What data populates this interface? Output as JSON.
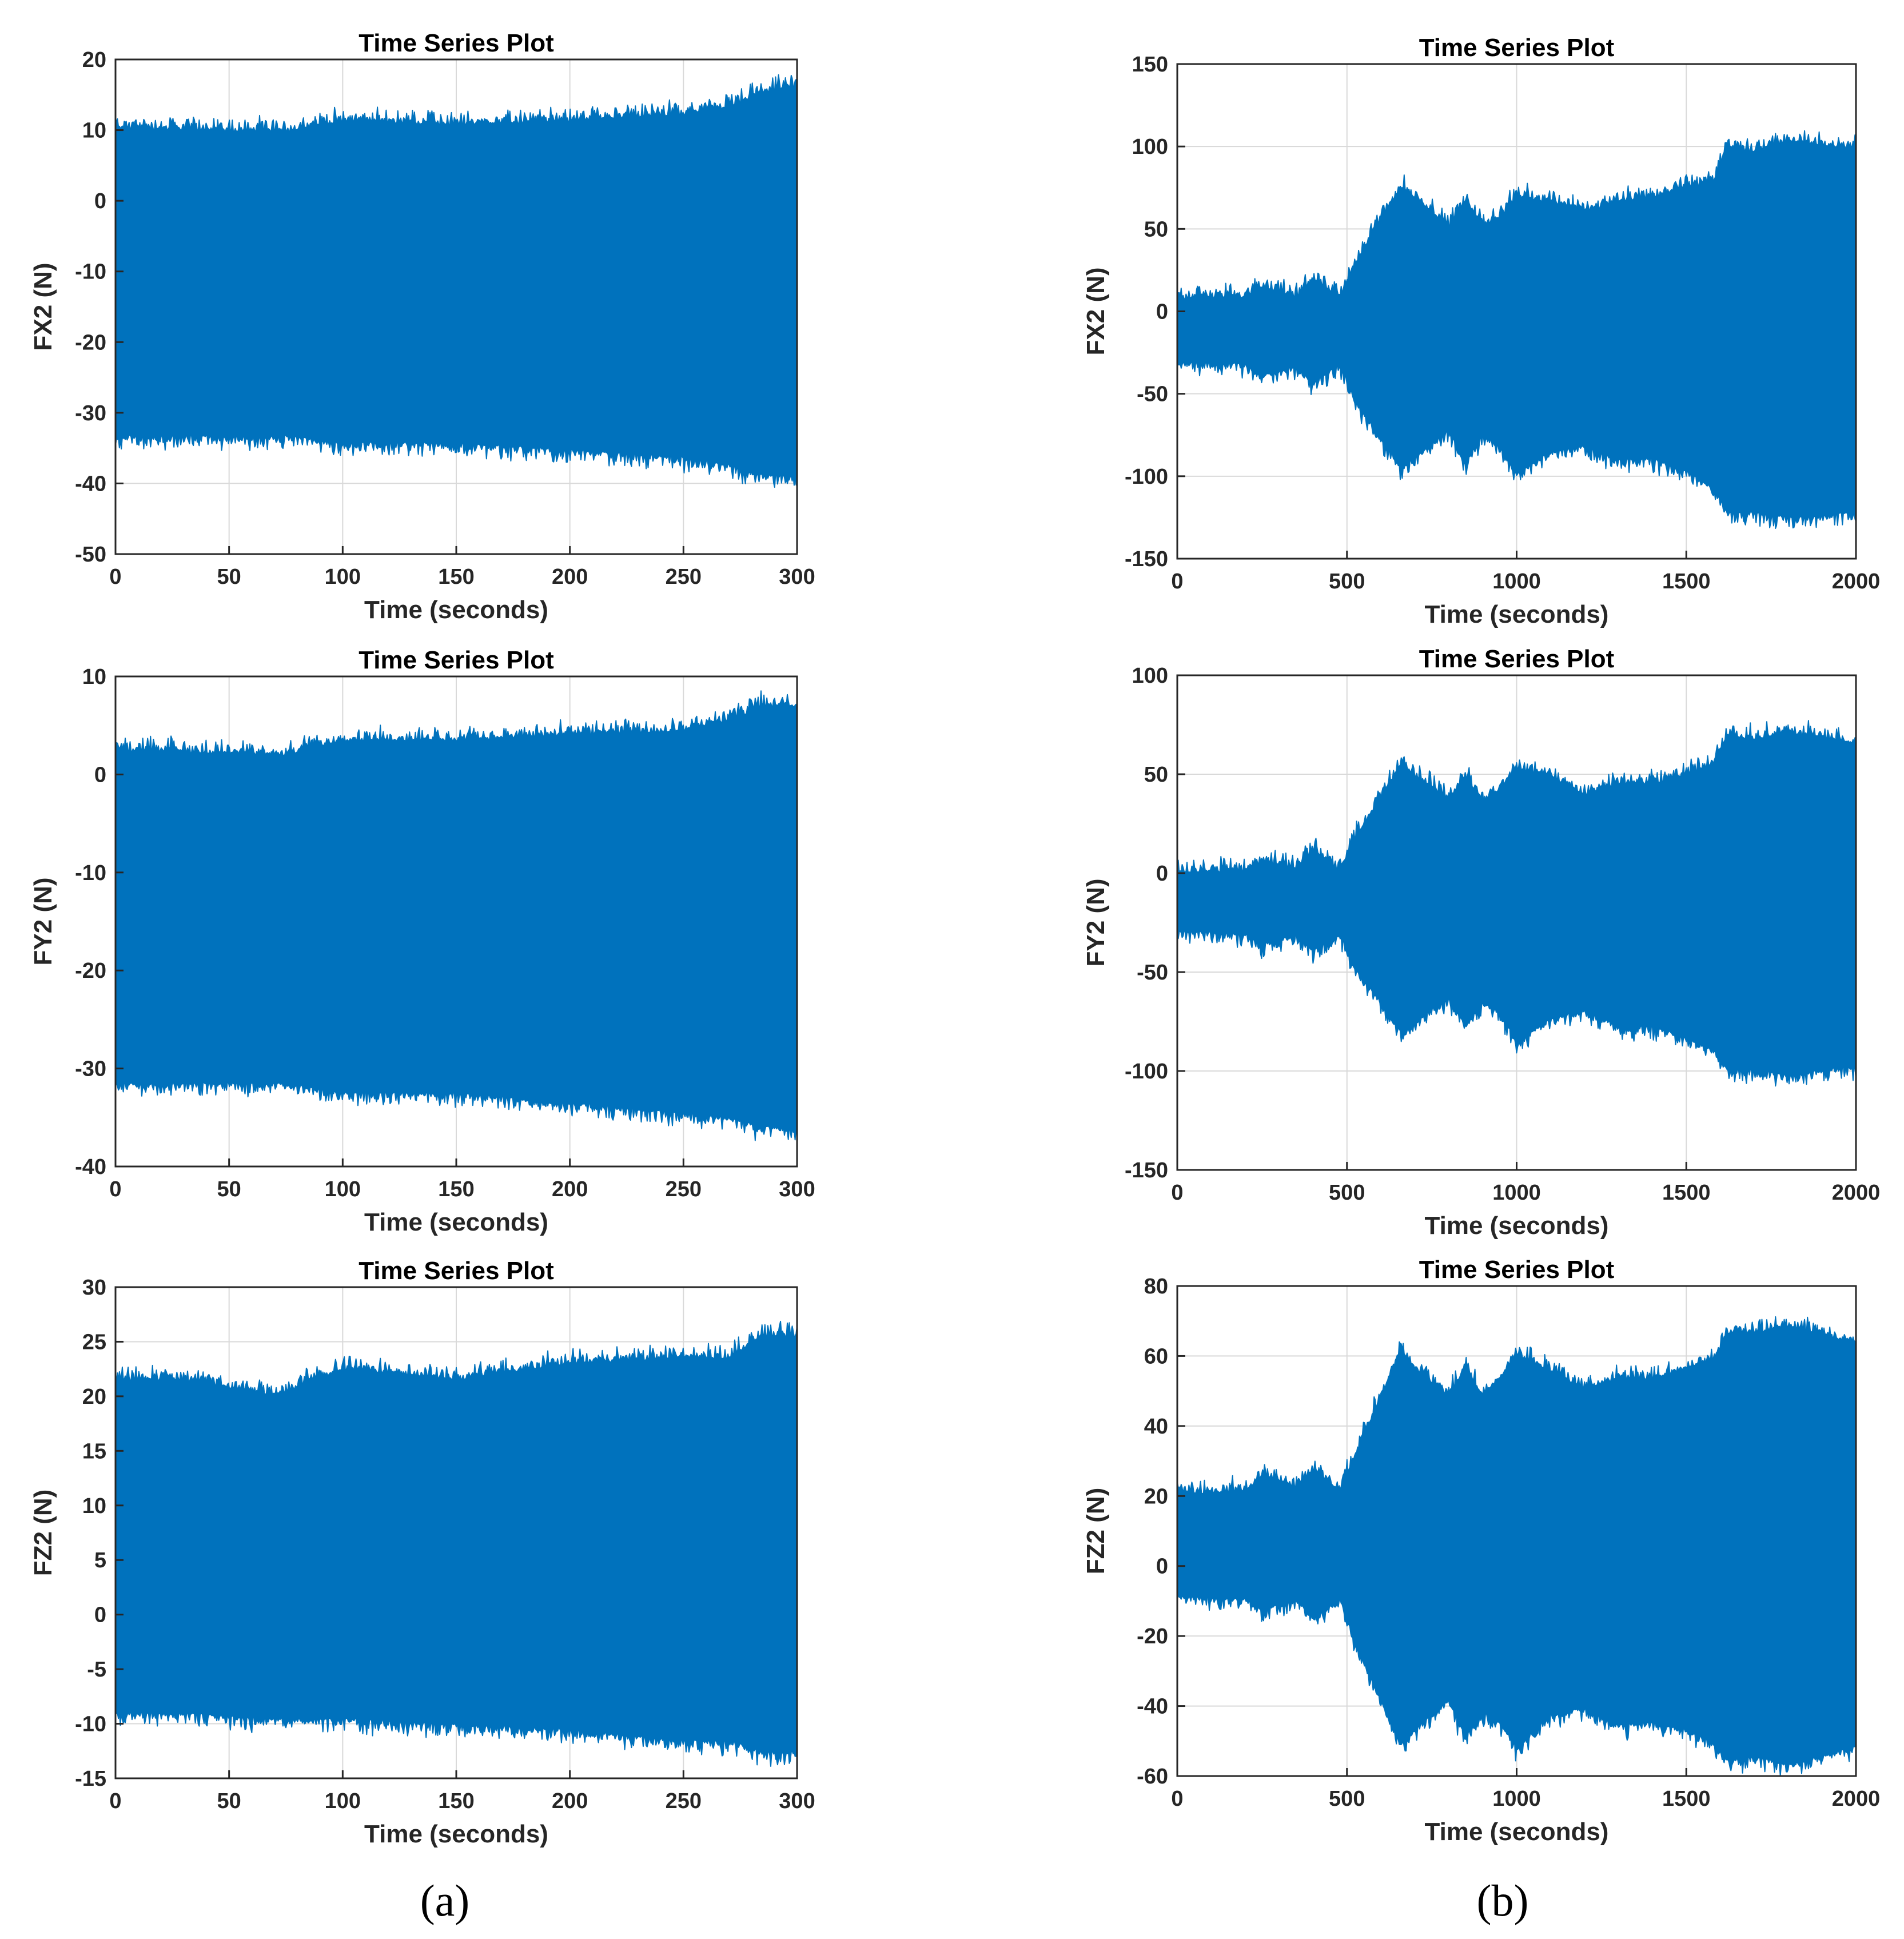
{
  "figure": {
    "panel_labels": [
      "(a)",
      "(b)"
    ],
    "series_color": "#0072bd",
    "grid_color": "#d9d9d9"
  },
  "chart_data": [
    {
      "type": "area",
      "title": "Time Series Plot",
      "xlabel": "Time (seconds)",
      "ylabel": "FX2 (N)",
      "xlim": [
        0,
        300
      ],
      "ylim": [
        -50,
        20
      ],
      "xticks": [
        0,
        50,
        100,
        150,
        200,
        250,
        300
      ],
      "yticks": [
        -50,
        -40,
        -30,
        -20,
        -10,
        0,
        10,
        20
      ],
      "envelope": {
        "x": [
          0,
          75,
          100,
          150,
          200,
          250,
          270,
          285,
          300
        ],
        "upper": [
          11,
          10.5,
          12,
          11.5,
          12,
          13,
          14,
          16,
          17
        ],
        "lower": [
          -34,
          -34,
          -35,
          -35,
          -36,
          -37,
          -38,
          -39.5,
          -39.5
        ]
      }
    },
    {
      "type": "area",
      "title": "Time Series Plot",
      "xlabel": "Time (seconds)",
      "ylabel": "FX2 (N)",
      "xlim": [
        0,
        2000
      ],
      "ylim": [
        -150,
        150
      ],
      "xticks": [
        0,
        500,
        1000,
        1500,
        2000
      ],
      "yticks": [
        -150,
        -100,
        -50,
        0,
        50,
        100,
        150
      ],
      "envelope": {
        "x": [
          0,
          200,
          250,
          350,
          400,
          480,
          520,
          600,
          660,
          700,
          800,
          850,
          900,
          950,
          1000,
          1100,
          1200,
          1300,
          1400,
          1500,
          1580,
          1620,
          1700,
          1800,
          2000
        ],
        "upper": [
          11,
          12,
          18,
          12,
          22,
          12,
          30,
          60,
          78,
          72,
          55,
          70,
          55,
          60,
          72,
          70,
          63,
          70,
          72,
          78,
          82,
          103,
          100,
          106,
          102
        ],
        "lower": [
          -34,
          -35,
          -42,
          -36,
          -46,
          -35,
          -55,
          -80,
          -98,
          -92,
          -75,
          -95,
          -78,
          -85,
          -102,
          -88,
          -85,
          -93,
          -92,
          -100,
          -110,
          -125,
          -125,
          -128,
          -125
        ]
      }
    },
    {
      "type": "area",
      "title": "Time Series Plot",
      "xlabel": "Time (seconds)",
      "ylabel": "FY2 (N)",
      "xlim": [
        0,
        300
      ],
      "ylim": [
        -40,
        10
      ],
      "xticks": [
        0,
        50,
        100,
        150,
        200,
        250,
        300
      ],
      "yticks": [
        -40,
        -30,
        -20,
        -10,
        0,
        10
      ],
      "envelope": {
        "x": [
          0,
          75,
          100,
          150,
          200,
          250,
          270,
          285,
          300
        ],
        "upper": [
          3,
          2.5,
          4,
          4,
          4.5,
          5,
          6,
          7.5,
          7.5
        ],
        "lower": [
          -32,
          -32,
          -33,
          -33,
          -34,
          -35,
          -35.5,
          -36.5,
          -36.5
        ]
      }
    },
    {
      "type": "area",
      "title": "Time Series Plot",
      "xlabel": "Time (seconds)",
      "ylabel": "FY2 (N)",
      "xlim": [
        0,
        2000
      ],
      "ylim": [
        -150,
        100
      ],
      "xticks": [
        0,
        500,
        1000,
        1500,
        2000
      ],
      "yticks": [
        -150,
        -100,
        -50,
        0,
        50,
        100
      ],
      "envelope": {
        "x": [
          0,
          200,
          250,
          350,
          400,
          480,
          520,
          600,
          660,
          700,
          800,
          850,
          900,
          950,
          1000,
          1100,
          1200,
          1300,
          1400,
          1500,
          1580,
          1620,
          1700,
          1800,
          2000
        ],
        "upper": [
          3,
          4,
          9,
          5,
          14,
          4,
          20,
          40,
          58,
          52,
          40,
          52,
          38,
          45,
          55,
          52,
          42,
          48,
          48,
          52,
          58,
          72,
          70,
          74,
          68
        ],
        "lower": [
          -32,
          -33,
          -38,
          -34,
          -42,
          -33,
          -50,
          -68,
          -83,
          -78,
          -65,
          -80,
          -68,
          -72,
          -88,
          -76,
          -72,
          -80,
          -80,
          -85,
          -92,
          -102,
          -102,
          -104,
          -100
        ]
      }
    },
    {
      "type": "area",
      "title": "Time Series Plot",
      "xlabel": "Time (seconds)",
      "ylabel": "FZ2 (N)",
      "xlim": [
        0,
        300
      ],
      "ylim": [
        -15,
        30
      ],
      "xticks": [
        0,
        50,
        100,
        150,
        200,
        250,
        300
      ],
      "yticks": [
        -15,
        -10,
        -5,
        0,
        5,
        10,
        15,
        20,
        25,
        30
      ],
      "envelope": {
        "x": [
          0,
          30,
          70,
          100,
          150,
          200,
          250,
          270,
          285,
          300
        ],
        "upper": [
          22,
          22,
          20.5,
          23,
          22,
          23.5,
          24,
          24,
          26,
          26
        ],
        "lower": [
          -9.5,
          -9.5,
          -10,
          -10,
          -10.5,
          -11,
          -12,
          -12,
          -13,
          -13
        ]
      }
    },
    {
      "type": "area",
      "title": "Time Series Plot",
      "xlabel": "Time (seconds)",
      "ylabel": "FZ2 (N)",
      "xlim": [
        0,
        2000
      ],
      "ylim": [
        -60,
        80
      ],
      "xticks": [
        0,
        500,
        1000,
        1500,
        2000
      ],
      "yticks": [
        -60,
        -40,
        -20,
        0,
        20,
        40,
        60,
        80
      ],
      "envelope": {
        "x": [
          0,
          200,
          250,
          350,
          400,
          480,
          520,
          600,
          660,
          700,
          800,
          850,
          900,
          950,
          1000,
          1100,
          1200,
          1300,
          1400,
          1500,
          1580,
          1620,
          1700,
          1800,
          2000
        ],
        "upper": [
          22,
          23,
          27,
          24,
          29,
          23,
          32,
          50,
          63,
          58,
          50,
          58,
          50,
          55,
          62,
          57,
          52,
          55,
          55,
          58,
          60,
          68,
          68,
          70,
          65
        ],
        "lower": [
          -10,
          -11,
          -14,
          -11,
          -16,
          -11,
          -22,
          -40,
          -52,
          -48,
          -40,
          -50,
          -43,
          -46,
          -53,
          -44,
          -42,
          -47,
          -46,
          -48,
          -52,
          -57,
          -56,
          -58,
          -53
        ]
      }
    }
  ]
}
